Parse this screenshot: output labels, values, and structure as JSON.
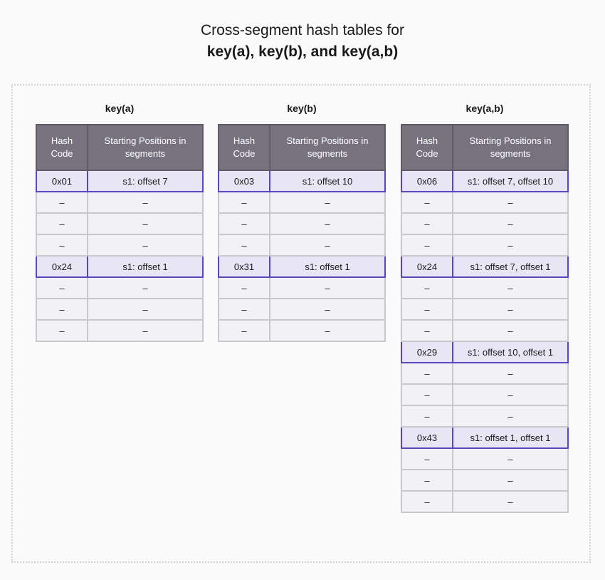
{
  "title": {
    "line1": "Cross-segment hash tables for",
    "line2": "key(a), key(b), and key(a,b)"
  },
  "colors": {
    "header_bg": "#76737f",
    "highlight_border": "#5a43d0",
    "highlight_bg": "#e8e6f5",
    "cell_bg": "#f2f2f4"
  },
  "tables": [
    {
      "label": "key(a)",
      "headers": [
        "Hash Code",
        "Starting Positions in segments"
      ],
      "rows": [
        {
          "hash": "0x01",
          "positions": "s1: offset 7",
          "highlighted": true
        },
        {
          "hash": "–",
          "positions": "–"
        },
        {
          "hash": "–",
          "positions": "–"
        },
        {
          "hash": "–",
          "positions": "–"
        },
        {
          "hash": "0x24",
          "positions": "s1: offset 1",
          "highlighted": true
        },
        {
          "hash": "–",
          "positions": "–"
        },
        {
          "hash": "–",
          "positions": "–"
        },
        {
          "hash": "–",
          "positions": "–"
        }
      ]
    },
    {
      "label": "key(b)",
      "headers": [
        "Hash Code",
        "Starting Positions in segments"
      ],
      "rows": [
        {
          "hash": "0x03",
          "positions": "s1: offset 10",
          "highlighted": true
        },
        {
          "hash": "–",
          "positions": "–"
        },
        {
          "hash": "–",
          "positions": "–"
        },
        {
          "hash": "–",
          "positions": "–"
        },
        {
          "hash": "0x31",
          "positions": "s1: offset 1",
          "highlighted": true
        },
        {
          "hash": "–",
          "positions": "–"
        },
        {
          "hash": "–",
          "positions": "–"
        },
        {
          "hash": "–",
          "positions": "–"
        }
      ]
    },
    {
      "label": "key(a,b)",
      "headers": [
        "Hash Code",
        "Starting Positions in segments"
      ],
      "rows": [
        {
          "hash": "0x06",
          "positions": "s1: offset 7, offset 10",
          "highlighted": true
        },
        {
          "hash": "–",
          "positions": "–"
        },
        {
          "hash": "–",
          "positions": "–"
        },
        {
          "hash": "–",
          "positions": "–"
        },
        {
          "hash": "0x24",
          "positions": "s1: offset 7, offset 1",
          "highlighted": true
        },
        {
          "hash": "–",
          "positions": "–"
        },
        {
          "hash": "–",
          "positions": "–"
        },
        {
          "hash": "–",
          "positions": "–"
        },
        {
          "hash": "0x29",
          "positions": "s1: offset 10, offset 1",
          "highlighted": true
        },
        {
          "hash": "–",
          "positions": "–"
        },
        {
          "hash": "–",
          "positions": "–"
        },
        {
          "hash": "–",
          "positions": "–"
        },
        {
          "hash": "0x43",
          "positions": "s1: offset 1, offset 1",
          "highlighted": true
        },
        {
          "hash": "–",
          "positions": "–"
        },
        {
          "hash": "–",
          "positions": "–"
        },
        {
          "hash": "–",
          "positions": "–"
        }
      ]
    }
  ]
}
